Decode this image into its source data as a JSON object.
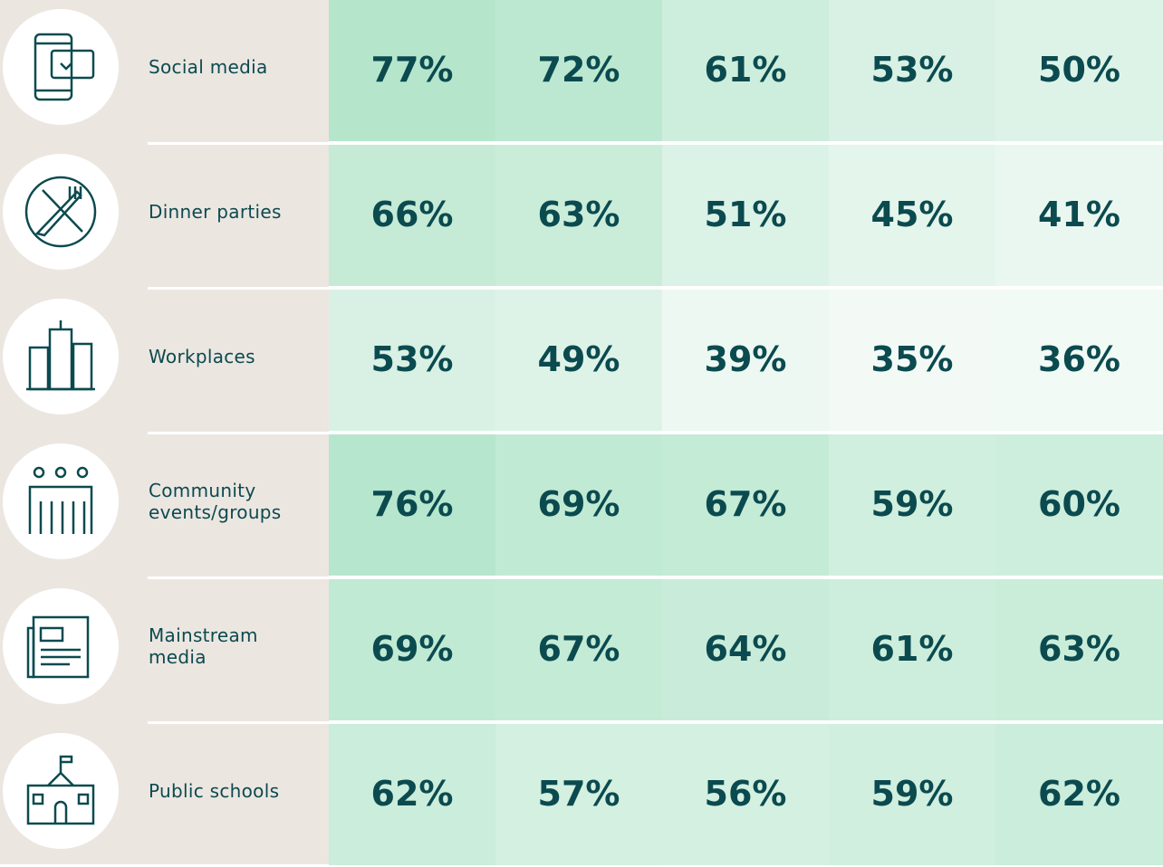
{
  "table": {
    "rows": [
      {
        "label": "Social media",
        "cells": [
          "77%",
          "72%",
          "61%",
          "53%",
          "50%"
        ]
      },
      {
        "label": "Dinner parties",
        "cells": [
          "66%",
          "63%",
          "51%",
          "45%",
          "41%"
        ]
      },
      {
        "label": "Workplaces",
        "cells": [
          "53%",
          "49%",
          "39%",
          "35%",
          "36%"
        ]
      },
      {
        "label": "Community events/groups",
        "cells": [
          "76%",
          "69%",
          "67%",
          "59%",
          "60%"
        ]
      },
      {
        "label": "Mainstream media",
        "cells": [
          "69%",
          "67%",
          "64%",
          "61%",
          "63%"
        ]
      },
      {
        "label": "Public schools",
        "cells": [
          "62%",
          "57%",
          "56%",
          "59%",
          "62%"
        ]
      }
    ]
  }
}
